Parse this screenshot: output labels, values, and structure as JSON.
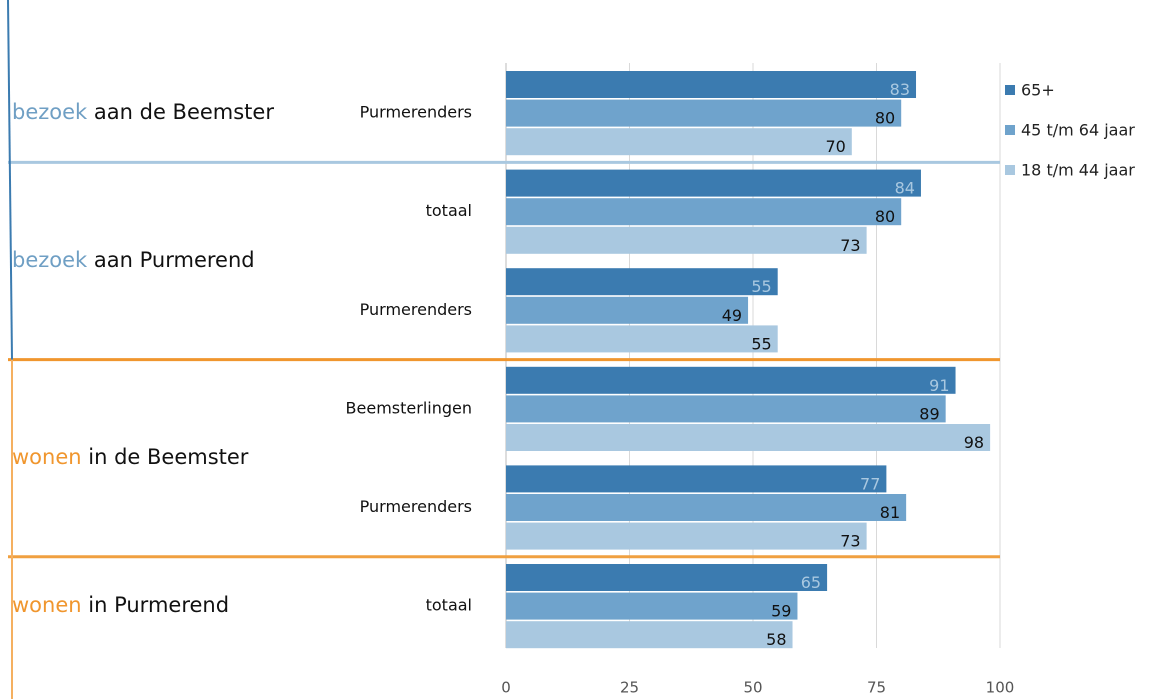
{
  "chart_data": {
    "type": "bar",
    "orientation": "horizontal",
    "sections": [
      {
        "highlight": "bezoek",
        "text": "aan de Beemster",
        "color": "#6f9fc4",
        "line_color": "#a9c8e0",
        "categories": [
          "Purmerenders"
        ]
      },
      {
        "highlight": "bezoek",
        "text": "aan Purmerend",
        "color": "#6f9fc4",
        "line_color": "#f0962e",
        "categories": [
          "totaal",
          "Purmerenders"
        ]
      },
      {
        "highlight": "wonen",
        "text": "in de Beemster",
        "color": "#f0962e",
        "line_color": "#f0a040",
        "categories": [
          "Beemsterlingen",
          "Purmerenders"
        ]
      },
      {
        "highlight": "wonen",
        "text": "in Purmerend",
        "color": "#f0962e",
        "line_color": "#f0a040",
        "categories": [
          "totaal"
        ]
      }
    ],
    "series": [
      {
        "name": "65+",
        "color": "#3b7bb0",
        "label_color": "#a9c8e0",
        "values": [
          83,
          84,
          55,
          91,
          77,
          65
        ]
      },
      {
        "name": "45 t/m 64 jaar",
        "color": "#6fa3cc",
        "label_color": "#111111",
        "values": [
          80,
          80,
          49,
          89,
          81,
          59
        ]
      },
      {
        "name": "18 t/m 44 jaar",
        "color": "#a9c8e0",
        "label_color": "#111111",
        "values": [
          70,
          73,
          55,
          98,
          73,
          58
        ]
      }
    ],
    "xlim": [
      0,
      100
    ],
    "xticks": [
      0,
      25,
      50,
      75,
      100
    ],
    "grid": true,
    "legend": "right"
  }
}
